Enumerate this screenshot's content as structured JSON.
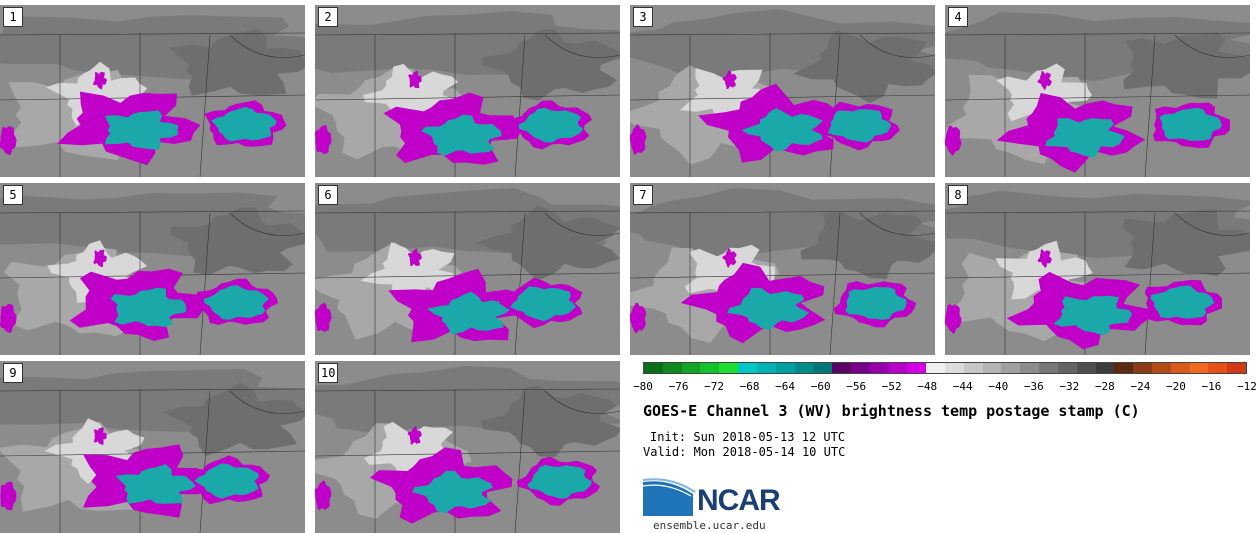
{
  "panels": [
    {
      "label": "1"
    },
    {
      "label": "2"
    },
    {
      "label": "3"
    },
    {
      "label": "4"
    },
    {
      "label": "5"
    },
    {
      "label": "6"
    },
    {
      "label": "7"
    },
    {
      "label": "8"
    },
    {
      "label": "9"
    },
    {
      "label": "10"
    }
  ],
  "colorbar": {
    "ticks": [
      "−80",
      "−76",
      "−72",
      "−68",
      "−64",
      "−60",
      "−56",
      "−52",
      "−48",
      "−44",
      "−40",
      "−36",
      "−32",
      "−28",
      "−24",
      "−20",
      "−16",
      "−12"
    ],
    "colors": [
      "#0a6e1a",
      "#0e8a1e",
      "#12a624",
      "#16c22a",
      "#1ade30",
      "#00c8c8",
      "#00b4b4",
      "#00a0a0",
      "#008c8c",
      "#007878",
      "#5a0066",
      "#78008a",
      "#9600aa",
      "#b400c8",
      "#d200e6",
      "#f0f0f0",
      "#dcdcdc",
      "#c8c8c8",
      "#b4b4b4",
      "#a0a0a0",
      "#8c8c8c",
      "#787878",
      "#646464",
      "#505050",
      "#3c3c3c",
      "#5a2a14",
      "#8a3a16",
      "#b44a18",
      "#d85a1a",
      "#f06a1c",
      "#e8501a",
      "#d03a14"
    ]
  },
  "title": "GOES-E Channel 3 (WV) brightness temp postage stamp (C)",
  "init": "Init: Sun 2018-05-13 12 UTC",
  "valid": "Valid: Mon 2018-05-14 10 UTC",
  "logo": {
    "word": "NCAR",
    "site": "ensemble.ucar.edu"
  }
}
